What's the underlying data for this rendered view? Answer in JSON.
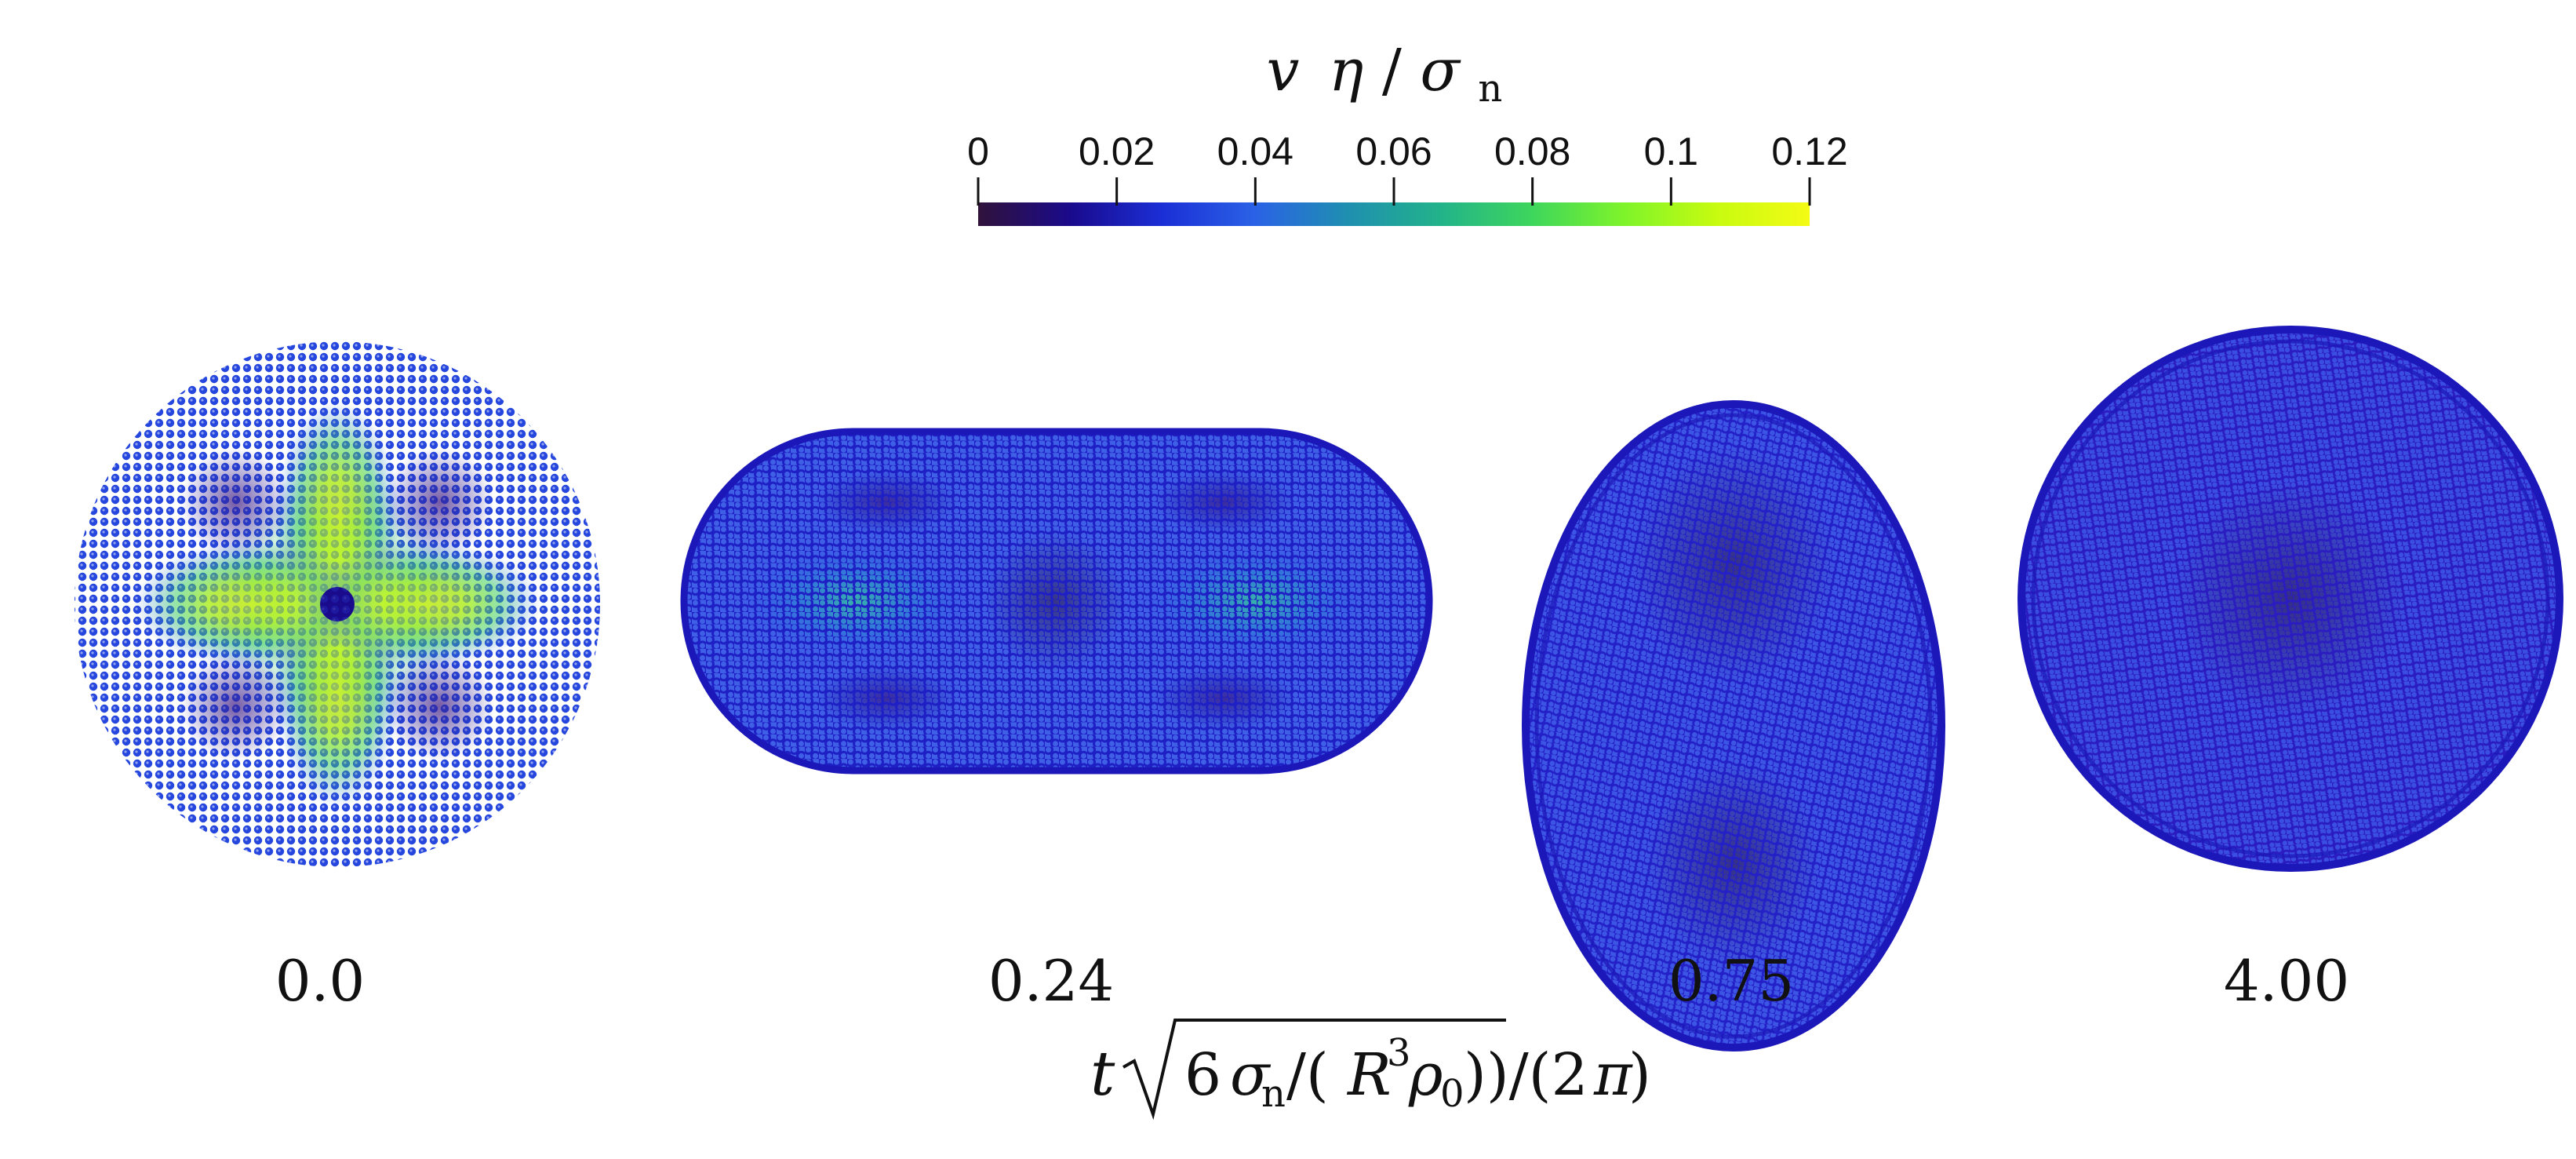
{
  "colorbar": {
    "title": "v η/σ_n",
    "title_parts": {
      "v": "v",
      "eta": "η",
      "sigma": "σ",
      "sub": "n"
    },
    "tick_labels": [
      "0",
      "0.02",
      "0.04",
      "0.06",
      "0.08",
      "0.1",
      "0.12"
    ],
    "tick_values": [
      0,
      0.02,
      0.04,
      0.06,
      0.08,
      0.1,
      0.12
    ],
    "range": [
      0,
      0.12
    ],
    "colormap": [
      "#30123b",
      "#1a0a8c",
      "#1b2fd6",
      "#2a62e6",
      "#1f8fb0",
      "#22b38a",
      "#3ed65c",
      "#7ff42a",
      "#c8fb10",
      "#f4fb14"
    ]
  },
  "panels": [
    {
      "label": "0.0",
      "shape": "disk",
      "lattice": "square",
      "state": "initial",
      "field": "quadrupole"
    },
    {
      "label": "0.24",
      "shape": "stadium-horizontal",
      "lattice": "disordered",
      "state": "stretched",
      "field": "two-lobes"
    },
    {
      "label": "0.75",
      "shape": "ellipse-vertical",
      "lattice": "disordered",
      "state": "stretched",
      "field": "low"
    },
    {
      "label": "4.00",
      "shape": "disk",
      "lattice": "disordered",
      "state": "relaxed",
      "field": "low"
    }
  ],
  "axis": {
    "label": "t √(6 σ_n/(R³ρ₀))/(2π)"
  }
}
